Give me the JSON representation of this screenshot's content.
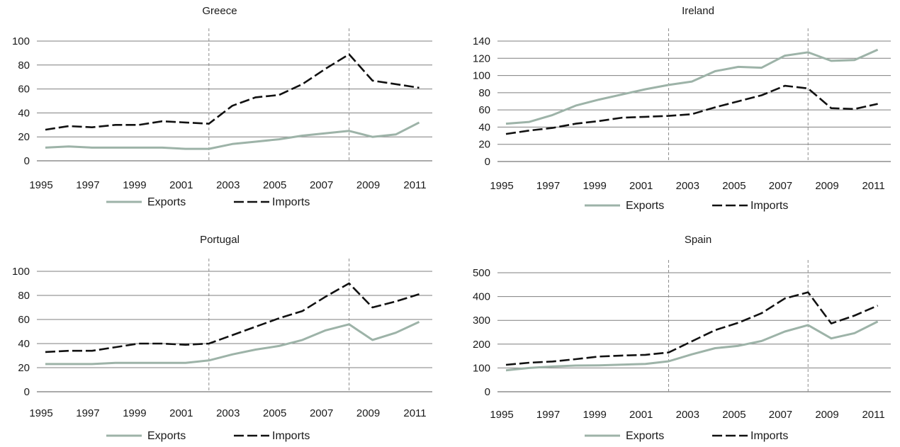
{
  "colors": {
    "exports": "#9db3a8",
    "imports": "#111111",
    "grid": "#7f7f7f",
    "marker": "#8c8c8c"
  },
  "series_names": [
    "Exports",
    "Imports"
  ],
  "chart_data": [
    {
      "type": "line",
      "title": "Greece",
      "ylim": [
        0,
        100
      ],
      "yticks": [
        0,
        20,
        40,
        60,
        80,
        100
      ],
      "xlim": [
        1995,
        2011.5
      ],
      "xticks": [
        1995,
        1997,
        1999,
        2001,
        2003,
        2005,
        2007,
        2009,
        2011
      ],
      "vlines": [
        2002,
        2008
      ],
      "grid": true,
      "legend": "bottom",
      "x": [
        1995,
        1996,
        1997,
        1998,
        1999,
        2000,
        2001,
        2002,
        2003,
        2004,
        2005,
        2006,
        2007,
        2008,
        2009,
        2010,
        2011
      ],
      "series": [
        {
          "name": "Exports",
          "values": [
            11,
            12,
            11,
            11,
            11,
            11,
            10,
            10,
            14,
            16,
            18,
            21,
            23,
            25,
            20,
            22,
            32
          ]
        },
        {
          "name": "Imports",
          "values": [
            26,
            29,
            28,
            30,
            30,
            33,
            32,
            31,
            46,
            53,
            55,
            64,
            77,
            89,
            67,
            64,
            61
          ]
        }
      ]
    },
    {
      "type": "line",
      "title": "Ireland",
      "ylim": [
        0,
        140
      ],
      "yticks": [
        0,
        20,
        40,
        60,
        80,
        100,
        120,
        140
      ],
      "xlim": [
        1995,
        2011.5
      ],
      "xticks": [
        1995,
        1997,
        1999,
        2001,
        2003,
        2005,
        2007,
        2009,
        2011
      ],
      "vlines": [
        2002,
        2008
      ],
      "grid": true,
      "legend": "bottom",
      "x": [
        1995,
        1996,
        1997,
        1998,
        1999,
        2000,
        2001,
        2002,
        2003,
        2004,
        2005,
        2006,
        2007,
        2008,
        2009,
        2010,
        2011
      ],
      "series": [
        {
          "name": "Exports",
          "values": [
            44,
            46,
            54,
            65,
            72,
            78,
            84,
            89,
            93,
            105,
            110,
            109,
            123,
            127,
            117,
            118,
            130
          ]
        },
        {
          "name": "Imports",
          "values": [
            32,
            36,
            39,
            44,
            47,
            51,
            52,
            53,
            55,
            63,
            70,
            77,
            88,
            85,
            62,
            61,
            67
          ]
        }
      ]
    },
    {
      "type": "line",
      "title": "Portugal",
      "ylim": [
        0,
        100
      ],
      "yticks": [
        0,
        20,
        40,
        60,
        80,
        100
      ],
      "xlim": [
        1995,
        2011.5
      ],
      "xticks": [
        1995,
        1997,
        1999,
        2001,
        2003,
        2005,
        2007,
        2009,
        2011
      ],
      "vlines": [
        2002,
        2008
      ],
      "grid": true,
      "legend": "bottom",
      "x": [
        1995,
        1996,
        1997,
        1998,
        1999,
        2000,
        2001,
        2002,
        2003,
        2004,
        2005,
        2006,
        2007,
        2008,
        2009,
        2010,
        2011
      ],
      "series": [
        {
          "name": "Exports",
          "values": [
            23,
            23,
            23,
            24,
            24,
            24,
            24,
            26,
            31,
            35,
            38,
            43,
            51,
            56,
            43,
            49,
            58
          ]
        },
        {
          "name": "Imports",
          "values": [
            33,
            34,
            34,
            37,
            40,
            40,
            39,
            40,
            47,
            54,
            61,
            67,
            79,
            90,
            70,
            75,
            81
          ]
        }
      ]
    },
    {
      "type": "line",
      "title": "Spain",
      "ylim": [
        0,
        500
      ],
      "yticks": [
        0,
        100,
        200,
        300,
        400,
        500
      ],
      "xlim": [
        1995,
        2011.5
      ],
      "xticks": [
        1995,
        1997,
        1999,
        2001,
        2003,
        2005,
        2007,
        2009,
        2011
      ],
      "vlines": [
        2002,
        2008
      ],
      "grid": true,
      "legend": "bottom",
      "x": [
        1995,
        1996,
        1997,
        1998,
        1999,
        2000,
        2001,
        2002,
        2003,
        2004,
        2005,
        2006,
        2007,
        2008,
        2009,
        2010,
        2011
      ],
      "series": [
        {
          "name": "Exports",
          "values": [
            90,
            100,
            106,
            110,
            111,
            114,
            117,
            128,
            157,
            183,
            193,
            213,
            253,
            280,
            224,
            246,
            295
          ]
        },
        {
          "name": "Imports",
          "values": [
            113,
            122,
            127,
            137,
            148,
            152,
            155,
            165,
            212,
            259,
            290,
            330,
            392,
            418,
            287,
            320,
            362
          ]
        }
      ]
    }
  ]
}
